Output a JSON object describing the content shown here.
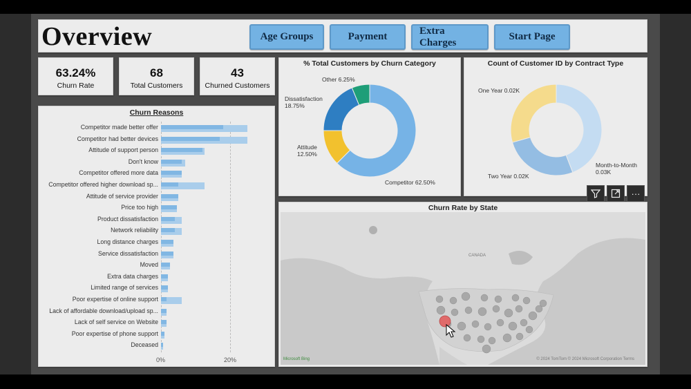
{
  "header": {
    "title": "Overview"
  },
  "nav": {
    "age_groups": "Age Groups",
    "payment": "Payment",
    "extra_charges": "Extra Charges",
    "start_page": "Start Page"
  },
  "kpis": [
    {
      "value": "63.24%",
      "label": "Churn Rate"
    },
    {
      "value": "68",
      "label": "Total Customers"
    },
    {
      "value": "43",
      "label": "Churned Customers"
    }
  ],
  "churn_reasons": {
    "title": "Churn Reasons",
    "ticks": [
      "0%",
      "20%"
    ],
    "items": [
      {
        "label": "Competitor made better offer",
        "value": 25,
        "value2": 18
      },
      {
        "label": "Competitor had better devices",
        "value": 25,
        "value2": 17
      },
      {
        "label": "Attitude of support person",
        "value": 12.5,
        "value2": 12
      },
      {
        "label": "Don't know",
        "value": 7,
        "value2": 6
      },
      {
        "label": "Competitor offered more data",
        "value": 6,
        "value2": 6
      },
      {
        "label": "Competitor offered higher download sp...",
        "value": 12.5,
        "value2": 5
      },
      {
        "label": "Attitude of service provider",
        "value": 5,
        "value2": 5
      },
      {
        "label": "Price too high",
        "value": 4.5,
        "value2": 4.5
      },
      {
        "label": "Product dissatisfaction",
        "value": 6,
        "value2": 4
      },
      {
        "label": "Network reliability",
        "value": 6,
        "value2": 4
      },
      {
        "label": "Long distance charges",
        "value": 3.5,
        "value2": 3.5
      },
      {
        "label": "Service dissatisfaction",
        "value": 3.5,
        "value2": 3.5
      },
      {
        "label": "Moved",
        "value": 2.5,
        "value2": 2.5
      },
      {
        "label": "Extra data charges",
        "value": 2,
        "value2": 2
      },
      {
        "label": "Limited range of services",
        "value": 2,
        "value2": 2
      },
      {
        "label": "Poor expertise of online support",
        "value": 6,
        "value2": 1.5
      },
      {
        "label": "Lack of affordable download/upload sp...",
        "value": 1.5,
        "value2": 1.5
      },
      {
        "label": "Lack of self service on Website",
        "value": 1.5,
        "value2": 1.5
      },
      {
        "label": "Poor expertise of phone support",
        "value": 1,
        "value2": 1
      },
      {
        "label": "Deceased",
        "value": 0.5,
        "value2": 0.5
      }
    ]
  },
  "chart_data": [
    {
      "type": "pie",
      "title": "% Total Customers by Churn Category",
      "slices": [
        {
          "label": "Competitor 62.50%",
          "value": 62.5,
          "color": "#76b3e6"
        },
        {
          "label": "Attitude 12.50%",
          "value": 12.5,
          "color": "#f2c12e"
        },
        {
          "label": "Dissatisfaction 18.75%",
          "value": 18.75,
          "color": "#2e7ec2"
        },
        {
          "label": "Other 6.25%",
          "value": 6.25,
          "color": "#1e9e78"
        }
      ]
    },
    {
      "type": "pie",
      "title": "Count of Customer ID by Contract Type",
      "slices": [
        {
          "label": "Month-to-Month 0.03K",
          "value": 30,
          "color": "#c4dcf2"
        },
        {
          "label": "Two Year 0.02K",
          "value": 18,
          "color": "#94bde3"
        },
        {
          "label": "One Year 0.02K",
          "value": 20,
          "color": "#f5db8c"
        }
      ]
    }
  ],
  "map": {
    "title": "Churn Rate by State",
    "labels": {
      "canada": "CANADA",
      "attribution": "© 2024 TomTom © 2024 Microsoft Corporation Terms",
      "logo": "Microsoft Bing"
    }
  },
  "toolbar": {
    "filter": "filter-icon",
    "focus": "focus-mode-icon",
    "more": "more-options-icon"
  }
}
